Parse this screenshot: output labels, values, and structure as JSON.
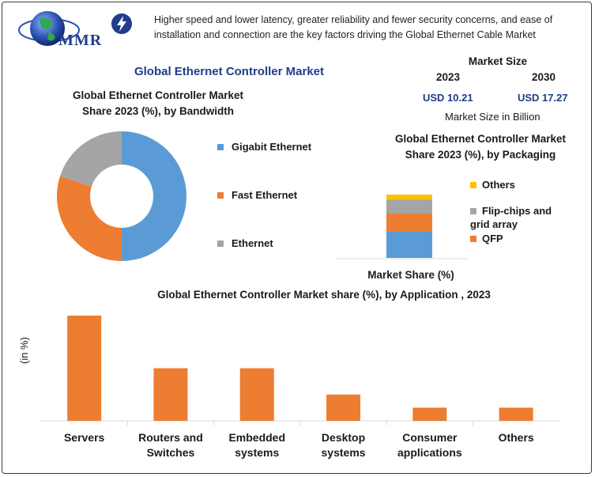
{
  "brand": {
    "logo_text": "MMR",
    "colors": {
      "primary": "#1f3d8a",
      "blue": "#5b9bd5",
      "orange": "#ed7d31",
      "gray": "#a5a5a5",
      "yellow": "#ffc000"
    }
  },
  "header": {
    "tagline_line1": "Higher speed and lower latency, greater reliability and fewer security concerns, and ease of",
    "tagline_line2": "installation and connection are the key factors driving the Global Ethernet Cable Market"
  },
  "main_title": "Global Ethernet Controller Market",
  "market_size": {
    "label": "Market Size",
    "year_a": "2023",
    "year_b": "2030",
    "value_a": "USD 10.21",
    "value_b": "USD 17.27",
    "unit_note": "Market Size in Billion"
  },
  "chart_data": [
    {
      "type": "pie",
      "title_line1": "Global Ethernet Controller Market",
      "title_line2": "Share 2023 (%), by Bandwidth",
      "donut": true,
      "legend_position": "right",
      "categories": [
        "Gigabit Ethernet",
        "Fast Ethernet",
        "Ethernet"
      ],
      "values": [
        50,
        30,
        20
      ],
      "colors": [
        "#5b9bd5",
        "#ed7d31",
        "#a5a5a5"
      ]
    },
    {
      "type": "bar",
      "stacked": true,
      "title_line1": "Global Ethernet Controller Market",
      "title_line2": "Share 2023 (%), by Packaging",
      "xlabel": "Market Share (%)",
      "legend_position": "right",
      "series": [
        {
          "values": [
            42
          ]
        },
        {
          "name": "QFP",
          "values": [
            28
          ]
        },
        {
          "name": "Flip-chips and grid array",
          "values": [
            22
          ]
        },
        {
          "name": "Others",
          "values": [
            8
          ]
        }
      ],
      "colors": [
        "#5b9bd5",
        "#ed7d31",
        "#a5a5a5",
        "#ffc000"
      ]
    },
    {
      "type": "bar",
      "title": "Global Ethernet Controller Market share (%), by Application , 2023",
      "ylabel": "(in %)",
      "grid": false,
      "categories": [
        {
          "line1": "Servers",
          "line2": ""
        },
        {
          "line1": "Routers and",
          "line2": "Switches"
        },
        {
          "line1": "Embedded",
          "line2": "systems"
        },
        {
          "line1": "Desktop",
          "line2": "systems"
        },
        {
          "line1": "Consumer",
          "line2": "applications"
        },
        {
          "line1": "Others",
          "line2": ""
        }
      ],
      "values": [
        40,
        20,
        20,
        10,
        5,
        5
      ],
      "ylim": [
        0,
        40
      ],
      "color": "#ed7d31"
    }
  ]
}
